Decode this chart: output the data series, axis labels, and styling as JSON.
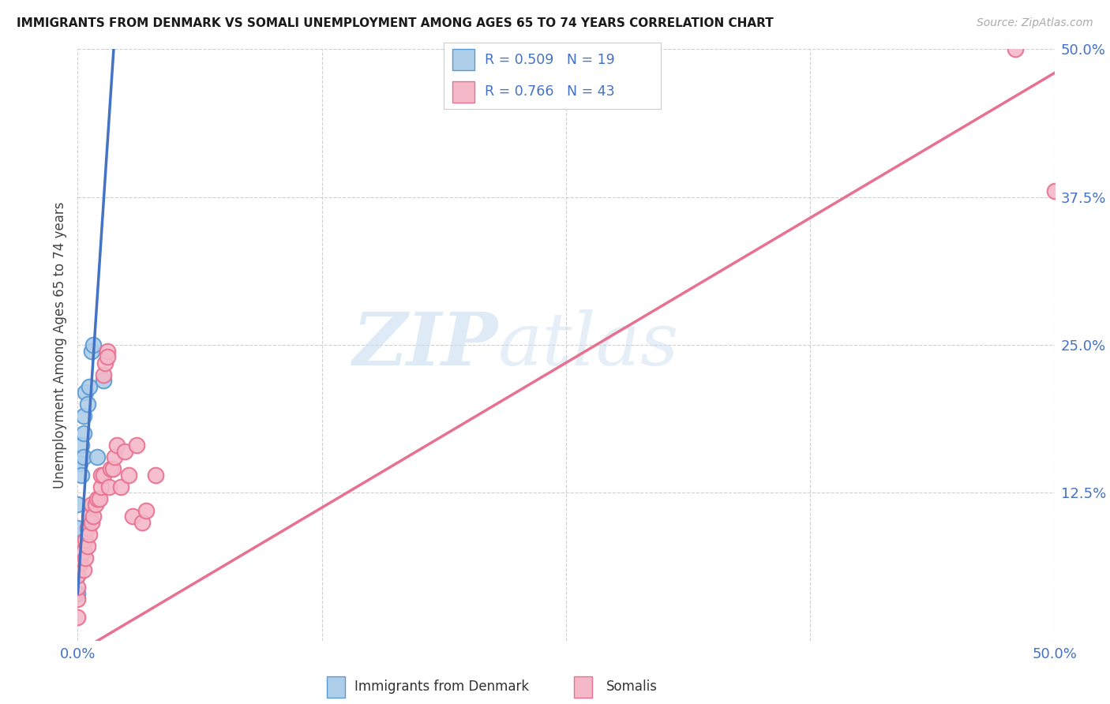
{
  "title": "IMMIGRANTS FROM DENMARK VS SOMALI UNEMPLOYMENT AMONG AGES 65 TO 74 YEARS CORRELATION CHART",
  "source": "Source: ZipAtlas.com",
  "ylabel": "Unemployment Among Ages 65 to 74 years",
  "xlim": [
    0.0,
    0.5
  ],
  "ylim": [
    0.0,
    0.5
  ],
  "xticks": [
    0.0,
    0.125,
    0.25,
    0.375,
    0.5
  ],
  "yticks": [
    0.0,
    0.125,
    0.25,
    0.375,
    0.5
  ],
  "xticklabels": [
    "0.0%",
    "",
    "",
    "",
    "50.0%"
  ],
  "yticklabels": [
    "",
    "12.5%",
    "25.0%",
    "37.5%",
    "50.0%"
  ],
  "watermark_zip": "ZIP",
  "watermark_atlas": "atlas",
  "denmark_color": "#aecde8",
  "denmark_edge": "#5b9bd5",
  "somali_color": "#f4b8c8",
  "somali_edge": "#e87090",
  "denmark_line_color": "#4472c4",
  "denmark_dash_color": "#89b4da",
  "somali_line_color": "#e87090",
  "legend_r_denmark": "R = 0.509",
  "legend_n_denmark": "N = 19",
  "legend_r_somali": "R = 0.766",
  "legend_n_somali": "N = 43",
  "legend_text_color": "#4472c4",
  "tick_color": "#4472c4",
  "denmark_x": [
    0.0,
    0.0,
    0.0,
    0.0,
    0.0,
    0.001,
    0.001,
    0.002,
    0.002,
    0.003,
    0.003,
    0.003,
    0.004,
    0.005,
    0.006,
    0.007,
    0.008,
    0.01,
    0.013
  ],
  "denmark_y": [
    0.04,
    0.055,
    0.065,
    0.095,
    0.115,
    0.07,
    0.15,
    0.14,
    0.165,
    0.155,
    0.175,
    0.19,
    0.21,
    0.2,
    0.215,
    0.245,
    0.25,
    0.155,
    0.22
  ],
  "somali_x": [
    0.0,
    0.0,
    0.0,
    0.0,
    0.0,
    0.001,
    0.002,
    0.003,
    0.003,
    0.004,
    0.004,
    0.005,
    0.005,
    0.006,
    0.006,
    0.007,
    0.007,
    0.008,
    0.009,
    0.01,
    0.011,
    0.012,
    0.012,
    0.013,
    0.013,
    0.014,
    0.015,
    0.015,
    0.016,
    0.017,
    0.018,
    0.019,
    0.02,
    0.022,
    0.024,
    0.026,
    0.028,
    0.03,
    0.033,
    0.035,
    0.04,
    0.48,
    0.5
  ],
  "somali_y": [
    0.02,
    0.035,
    0.045,
    0.055,
    0.065,
    0.065,
    0.075,
    0.06,
    0.075,
    0.07,
    0.085,
    0.08,
    0.095,
    0.09,
    0.105,
    0.1,
    0.115,
    0.105,
    0.115,
    0.12,
    0.12,
    0.13,
    0.14,
    0.14,
    0.225,
    0.235,
    0.245,
    0.24,
    0.13,
    0.145,
    0.145,
    0.155,
    0.165,
    0.13,
    0.16,
    0.14,
    0.105,
    0.165,
    0.1,
    0.11,
    0.14,
    0.5,
    0.38
  ],
  "background_color": "#ffffff",
  "grid_color": "#d0d0d0",
  "dk_line_slope": 25.0,
  "dk_line_intercept": 0.04,
  "so_line_slope": 0.98,
  "so_line_intercept": -0.01
}
